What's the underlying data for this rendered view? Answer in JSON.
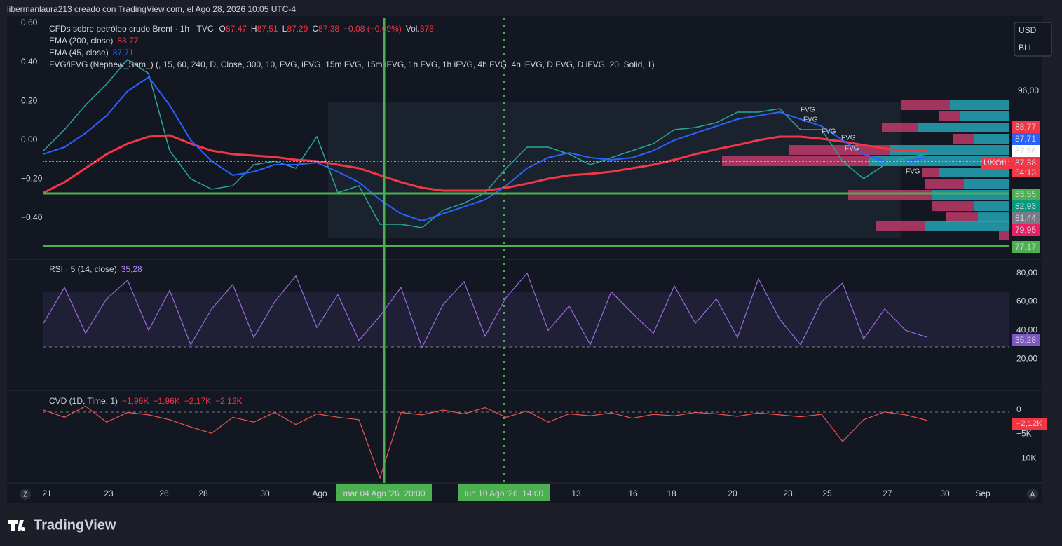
{
  "header": {
    "title": "libermanlaura213 creado con TradingView.com, el Ago 28, 2026 10:05 UTC-4"
  },
  "legend": {
    "symbol": "CFDs sobre petróleo crudo Brent · 1h · TVC",
    "o_label": "O",
    "o": "87,47",
    "h_label": "H",
    "h": "87,51",
    "l_label": "L",
    "l": "87,29",
    "c_label": "C",
    "c": "87,38",
    "change": "−0,08 (−0,09%)",
    "vol_label": "Vol.",
    "vol": "378",
    "ema200": {
      "name": "EMA (200, close)",
      "value": "88,77"
    },
    "ema45": {
      "name": "EMA (45, close)",
      "value": "87,71"
    },
    "fvg": "FVG/iFVG (Nephew_Sam_) (, 15, 60, 240, D, Close, 300, 10, FVG, iFVG, 15m FVG, 15m iFVG, 1h FVG, 1h iFVG, 4h FVG, 4h iFVG, D FVG, D iFVG, 20, Solid, 1)"
  },
  "currency": [
    "USD",
    "BLL"
  ],
  "price_pane": {
    "ylim": [
      75.5,
      105.0
    ],
    "ticks": [
      {
        "value": 96,
        "label": "96,00"
      }
    ],
    "left_ylim": [
      -0.605,
      0.629
    ],
    "left_ticks": [
      {
        "value": 0.6,
        "label": "0,60"
      },
      {
        "value": 0.4,
        "label": "0,40"
      },
      {
        "value": 0.2,
        "label": "0,20"
      },
      {
        "value": 0,
        "label": "0,00"
      },
      {
        "value": -0.2,
        "label": "−0,20"
      },
      {
        "value": -0.4,
        "label": "−0,40"
      }
    ],
    "close": [
      88.66,
      91.24,
      94.25,
      96.83,
      99.84,
      98.12,
      88.66,
      85.22,
      83.93,
      84.36,
      86.94,
      87.37,
      86.51,
      90.38,
      83.5,
      84.36,
      79.63,
      79.63,
      79.2,
      81.35,
      82.21,
      83.5,
      86.51,
      89.09,
      89.09,
      88.23,
      86.94,
      87.8,
      88.66,
      89.52,
      91.24,
      91.5,
      92.1,
      93.39,
      93.39,
      93.82,
      91.24,
      91.24,
      87.37,
      85.22,
      86.94,
      87.8,
      88.23
    ],
    "ema45": [
      88.23,
      89.09,
      90.81,
      92.96,
      95.97,
      97.69,
      94.25,
      89.95,
      87.37,
      85.65,
      86.08,
      86.94,
      86.94,
      87.2,
      86.08,
      84.79,
      82.64,
      80.92,
      80.06,
      80.92,
      81.78,
      82.64,
      84.36,
      86.51,
      87.8,
      88.4,
      87.8,
      87.54,
      87.8,
      88.66,
      89.95,
      90.81,
      91.67,
      92.53,
      92.96,
      93.39,
      92.53,
      91.67,
      89.95,
      88.23,
      87.37,
      87.37,
      87.8
    ],
    "ema200": [
      83.5,
      84.79,
      86.51,
      88.23,
      89.52,
      90.38,
      90.55,
      89.52,
      88.66,
      88.23,
      88.06,
      87.88,
      87.54,
      87.37,
      86.94,
      86.51,
      85.65,
      84.79,
      84.1,
      83.76,
      83.76,
      83.76,
      84.1,
      84.62,
      85.22,
      85.65,
      85.82,
      86.08,
      86.51,
      86.94,
      87.54,
      88.23,
      88.83,
      89.35,
      89.95,
      90.38,
      90.38,
      90.12,
      89.78,
      89.35,
      88.92,
      88.66,
      88.66
    ],
    "price_labels": [
      {
        "label": "88,77",
        "color": "#f23645"
      },
      {
        "label": "87,71",
        "color": "#2962ff"
      },
      {
        "label": "87,56",
        "color": "#ffffff"
      },
      {
        "label": "87,38",
        "color": "#f23645"
      },
      {
        "label": "54:13",
        "color": "#f23645"
      },
      {
        "label": "83,55",
        "color": "#4caf50"
      },
      {
        "label": "82,93",
        "color": "#089981"
      },
      {
        "label": "81,44",
        "color": "#787b86"
      },
      {
        "label": "79,95",
        "color": "#e91e63"
      },
      {
        "label": "77,17",
        "color": "#4caf50"
      }
    ],
    "symbol_tag": "UKOIL",
    "fvg_labels": [
      "FVG",
      "FVG",
      "FVG",
      "FVG",
      "FVG",
      "FVG"
    ],
    "volume_profile": {
      "levels": [
        94.25,
        92.96,
        91.5,
        90.12,
        88.74,
        87.37,
        85.99,
        84.61,
        83.24,
        81.86,
        80.48,
        79.46,
        78.25
      ],
      "buy": [
        70,
        30,
        52,
        30,
        145,
        210,
        25,
        55,
        120,
        60,
        45,
        70,
        15
      ],
      "sell": [
        85,
        70,
        130,
        50,
        170,
        200,
        100,
        65,
        110,
        50,
        45,
        120,
        0
      ]
    }
  },
  "rsi_pane": {
    "title": "RSI · 5 (14, close)",
    "value": "35,28",
    "ylim": [
      -1,
      88.7
    ],
    "ticks": [
      {
        "value": 80,
        "label": "80,00"
      },
      {
        "value": 60,
        "label": "60,00"
      },
      {
        "value": 40,
        "label": "40,00"
      },
      {
        "value": 20,
        "label": "20,00"
      }
    ],
    "values": [
      45,
      70,
      38,
      62,
      75,
      40,
      68,
      30,
      55,
      72,
      35,
      60,
      78,
      42,
      65,
      33,
      50,
      70,
      28,
      58,
      74,
      36,
      63,
      80,
      40,
      57,
      30,
      67,
      52,
      38,
      71,
      45,
      62,
      35,
      76,
      48,
      30,
      60,
      73,
      34,
      55,
      40,
      35.28
    ],
    "current_label": "35,28"
  },
  "cvd_pane": {
    "title": "CVD (1D, Time, 1)",
    "legend_values": [
      "−1,96K",
      "−1,96K",
      "−2,17K",
      "−2,12K"
    ],
    "ylim": [
      -14900,
      3900
    ],
    "ticks": [
      0,
      {
        "value": -5000,
        "label": "−5K"
      },
      {
        "value": -10000,
        "label": "−10K"
      }
    ],
    "values": [
      0,
      -1500,
      800,
      -2500,
      -500,
      -1000,
      -2000,
      -3500,
      -4800,
      -1500,
      -2500,
      -500,
      -3000,
      -800,
      -1500,
      -2000,
      -14000,
      -500,
      -1000,
      0,
      -800,
      500,
      -1500,
      -200,
      -2500,
      -800,
      -1200,
      -600,
      -1700,
      -900,
      -1200,
      -500,
      -800,
      -1300,
      -600,
      -1000,
      -1400,
      -900,
      -6500,
      -2000,
      -400,
      -1000,
      -2120
    ],
    "current_label": "−2,12K"
  },
  "time_axis": {
    "labels": [
      "21",
      "23",
      "26",
      "28",
      "30",
      "Ago",
      "13",
      "16",
      "18",
      "20",
      "23",
      "25",
      "27",
      "30",
      "Sep"
    ],
    "markers": [
      "mar 04 Ago '26  20:00",
      "lun 10 Ago '26  14:00"
    ],
    "left_button": "Z",
    "right_button": "A"
  },
  "footer": {
    "brand": "TradingView"
  }
}
